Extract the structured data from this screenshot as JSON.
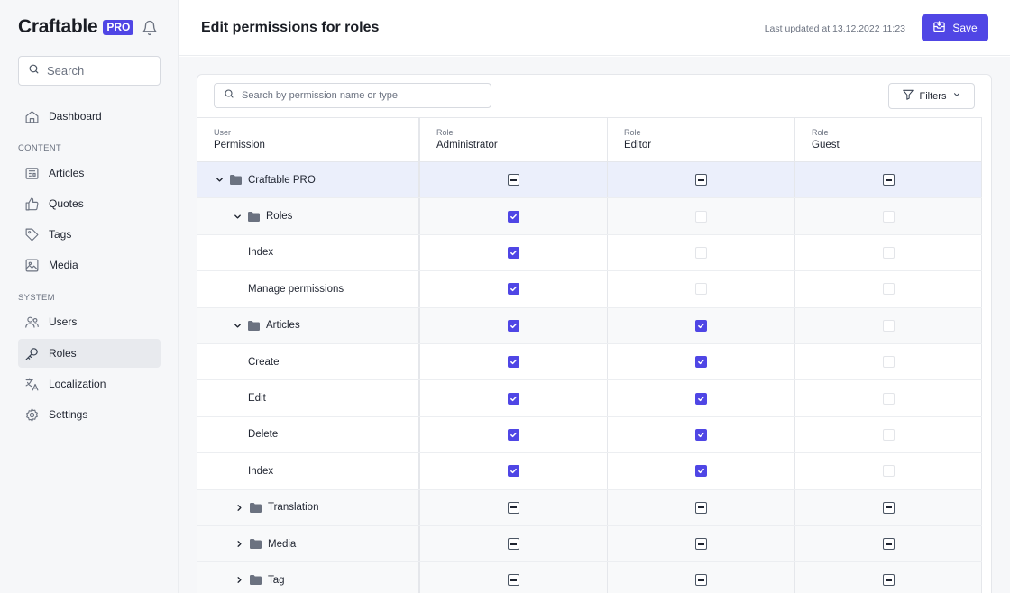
{
  "brand": {
    "name": "Craftable",
    "badge": "PRO"
  },
  "sidebar": {
    "search_placeholder": "Search",
    "sections": {
      "content": "CONTENT",
      "system": "SYSTEM"
    },
    "items": [
      {
        "label": "Dashboard",
        "icon": "home-icon"
      },
      {
        "label": "Articles",
        "icon": "newspaper-icon"
      },
      {
        "label": "Quotes",
        "icon": "thumb-up-icon"
      },
      {
        "label": "Tags",
        "icon": "tag-icon"
      },
      {
        "label": "Media",
        "icon": "image-icon"
      },
      {
        "label": "Users",
        "icon": "users-icon"
      },
      {
        "label": "Roles",
        "icon": "key-icon",
        "active": true
      },
      {
        "label": "Localization",
        "icon": "translate-icon"
      },
      {
        "label": "Settings",
        "icon": "gear-icon"
      }
    ]
  },
  "header": {
    "title": "Edit permissions for roles",
    "last_updated": "Last updated at 13.12.2022 11:23",
    "save_label": "Save"
  },
  "toolbar": {
    "search_placeholder": "Search by permission name or type",
    "filters_label": "Filters"
  },
  "table": {
    "columns": [
      {
        "small": "User",
        "big": "Permission"
      },
      {
        "small": "Role",
        "big": "Administrator"
      },
      {
        "small": "Role",
        "big": "Editor"
      },
      {
        "small": "Role",
        "big": "Guest"
      }
    ],
    "rows": [
      {
        "label": "Craftable PRO",
        "type": "root",
        "chevron": "down",
        "states": [
          "indet",
          "indet",
          "indet"
        ]
      },
      {
        "label": "Roles",
        "type": "group",
        "chevron": "down",
        "states": [
          "checked",
          "empty",
          "empty"
        ]
      },
      {
        "label": "Index",
        "type": "leaf",
        "states": [
          "checked",
          "empty",
          "empty"
        ]
      },
      {
        "label": "Manage permissions",
        "type": "leaf",
        "states": [
          "checked",
          "empty",
          "empty"
        ]
      },
      {
        "label": "Articles",
        "type": "group",
        "chevron": "down",
        "states": [
          "checked",
          "checked",
          "empty"
        ]
      },
      {
        "label": "Create",
        "type": "leaf",
        "states": [
          "checked",
          "checked",
          "empty"
        ]
      },
      {
        "label": "Edit",
        "type": "leaf",
        "states": [
          "checked",
          "checked",
          "empty"
        ]
      },
      {
        "label": "Delete",
        "type": "leaf",
        "states": [
          "checked",
          "checked",
          "empty"
        ]
      },
      {
        "label": "Index",
        "type": "leaf",
        "states": [
          "checked",
          "checked",
          "empty"
        ]
      },
      {
        "label": "Translation",
        "type": "group",
        "chevron": "right",
        "states": [
          "indet",
          "indet",
          "indet"
        ]
      },
      {
        "label": "Media",
        "type": "group",
        "chevron": "right",
        "states": [
          "indet",
          "indet",
          "indet"
        ]
      },
      {
        "label": "Tag",
        "type": "group",
        "chevron": "right",
        "states": [
          "indet",
          "indet",
          "indet"
        ]
      }
    ]
  },
  "colors": {
    "accent": "#5046e5",
    "sidebar_bg": "#f6f7f9",
    "root_row_bg": "#ebeffb"
  }
}
